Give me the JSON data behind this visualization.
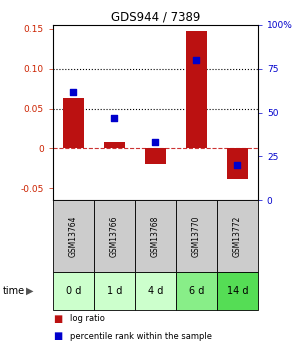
{
  "title": "GDS944 / 7389",
  "samples": [
    "GSM13764",
    "GSM13766",
    "GSM13768",
    "GSM13770",
    "GSM13772"
  ],
  "time_labels": [
    "0 d",
    "1 d",
    "4 d",
    "6 d",
    "14 d"
  ],
  "log_ratio": [
    0.063,
    0.008,
    -0.02,
    0.147,
    -0.038
  ],
  "percentile_rank": [
    62,
    47,
    33,
    80,
    20
  ],
  "ylim_left": [
    -0.065,
    0.155
  ],
  "ylim_right": [
    0,
    100
  ],
  "yticks_left": [
    -0.05,
    0,
    0.05,
    0.1,
    0.15
  ],
  "yticks_right": [
    0,
    25,
    50,
    75,
    100
  ],
  "ytick_labels_left": [
    "-0.05",
    "0",
    "0.05",
    "0.10",
    "0.15"
  ],
  "ytick_labels_right": [
    "0",
    "25",
    "50",
    "75",
    "100%"
  ],
  "hlines": [
    0.05,
    0.1
  ],
  "zero_line": 0,
  "bar_color": "#bb1111",
  "marker_color": "#0000cc",
  "bar_width": 0.5,
  "background_color": "#ffffff",
  "plot_bg_color": "#ffffff",
  "gsm_bg_color": "#cccccc",
  "time_bg_colors": [
    "#ccffcc",
    "#ccffcc",
    "#ccffcc",
    "#88ee88",
    "#55dd55"
  ],
  "legend_red_label": "log ratio",
  "legend_blue_label": "percentile rank within the sample",
  "time_arrow_label": "time"
}
